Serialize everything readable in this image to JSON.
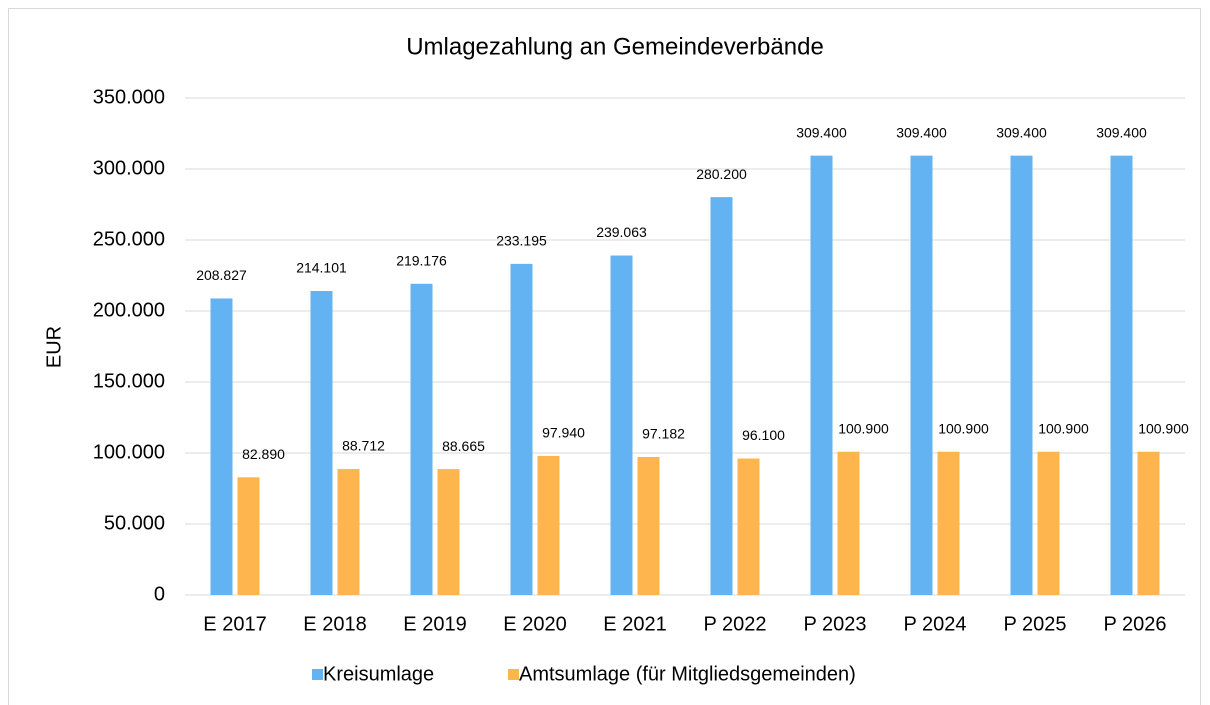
{
  "chart_data": {
    "type": "bar",
    "title": "Umlagezahlung an Gemeindeverbände",
    "y_label": "EUR",
    "categories": [
      "E 2017",
      "E 2018",
      "E 2019",
      "E 2020",
      "E 2021",
      "P 2022",
      "P 2023",
      "P 2024",
      "P 2025",
      "P 2026"
    ],
    "series": [
      {
        "name": "Kreisumlage",
        "color": "#63b3f2",
        "values": [
          208827,
          214101,
          219176,
          233195,
          239063,
          280200,
          309400,
          309400,
          309400,
          309400
        ],
        "value_labels": [
          "208.827",
          "214.101",
          "219.176",
          "233.195",
          "239.063",
          "280.200",
          "309.400",
          "309.400",
          "309.400",
          "309.400"
        ]
      },
      {
        "name": "Amtsumlage (für Mitgliedsgemeinden)",
        "color": "#ffb54d",
        "values": [
          82890,
          88712,
          88665,
          97940,
          97182,
          96100,
          100900,
          100900,
          100900,
          100900
        ],
        "value_labels": [
          "82.890",
          "88.712",
          "88.665",
          "97.940",
          "97.182",
          "96.100",
          "100.900",
          "100.900",
          "100.900",
          "100.900"
        ]
      }
    ],
    "ylim": [
      0,
      350000
    ],
    "yticks": [
      0,
      {
        "value": 50000,
        "label": "50.000"
      },
      {
        "value": 100000,
        "label": "100.000"
      },
      {
        "value": 150000,
        "label": "150.000"
      },
      {
        "value": 200000,
        "label": "200.000"
      },
      {
        "value": 250000,
        "label": "250.000"
      },
      {
        "value": 300000,
        "label": "300.000"
      },
      {
        "value": 350000,
        "label": "350.000"
      }
    ],
    "grid": true,
    "legend": "bottom"
  }
}
